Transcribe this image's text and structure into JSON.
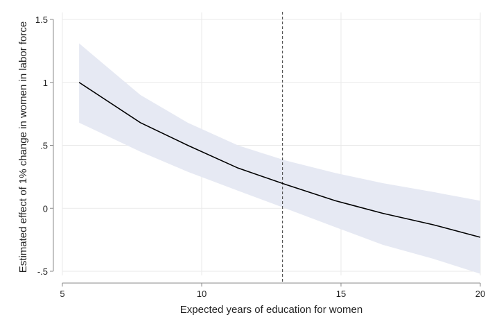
{
  "chart_data": {
    "type": "line",
    "title": "",
    "xlabel": "Expected years of education for women",
    "ylabel": "Estimated effect of 1% change in women in labor force",
    "xlim": [
      5,
      20
    ],
    "ylim": [
      -0.5,
      1.5
    ],
    "x_ticks": [
      5,
      10,
      15,
      20
    ],
    "x_tick_labels": [
      "5",
      "10",
      "15",
      "20"
    ],
    "y_ticks": [
      -0.5,
      0,
      0.5,
      1,
      1.5
    ],
    "y_tick_labels": [
      "-.5",
      "0",
      ".5",
      "1",
      "1.5"
    ],
    "grid": true,
    "reference_line": {
      "x": 12.9,
      "style": "dashed"
    },
    "series": [
      {
        "x": [
          5.6,
          7.8,
          9.5,
          11.3,
          13.0,
          14.8,
          16.5,
          18.3,
          20.0
        ],
        "y": [
          1.0,
          0.68,
          0.5,
          0.32,
          0.19,
          0.06,
          -0.04,
          -0.13,
          -0.23
        ],
        "lower": [
          0.68,
          0.45,
          0.29,
          0.14,
          0.0,
          -0.15,
          -0.29,
          -0.4,
          -0.52
        ],
        "upper": [
          1.31,
          0.9,
          0.68,
          0.5,
          0.38,
          0.28,
          0.2,
          0.13,
          0.06
        ]
      }
    ],
    "colors": {
      "line": "#000000",
      "band": "#e6e9f3",
      "grid": "#eaeaea",
      "axis": "#8a8a8a",
      "reference": "#555555"
    }
  }
}
